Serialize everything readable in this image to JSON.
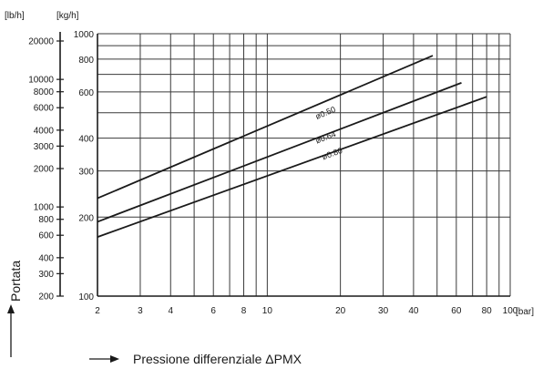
{
  "chart_data": {
    "type": "line",
    "title": "",
    "xlabel": "Pressione differenziale ΔPMX",
    "ylabel": "Portata",
    "x_unit": "[bar]",
    "y_unit_primary": "[kg/h]",
    "y_unit_secondary": "[lb/h]",
    "x_scale": "log",
    "y_scale": "log",
    "xlim": [
      2,
      100
    ],
    "ylim": [
      100,
      1000
    ],
    "grid": true,
    "legend": "none",
    "x_ticks": [
      2,
      3,
      4,
      6,
      8,
      10,
      20,
      30,
      40,
      60,
      80,
      100
    ],
    "x_tick_labels": [
      "2",
      "3",
      "4",
      "6",
      "8",
      "10",
      "20",
      "30",
      "40",
      "60",
      "80",
      "100"
    ],
    "x_minor_grid": [
      5,
      7,
      9,
      50,
      70,
      90
    ],
    "y_ticks": [
      100,
      200,
      300,
      400,
      600,
      800,
      1000
    ],
    "y_tick_labels": [
      "100",
      "200",
      "300",
      "400",
      "600",
      "800",
      "1000"
    ],
    "y_minor_grid": [
      500,
      700,
      900
    ],
    "secondary_y_ticks": [
      {
        "label": "20000",
        "at_kg_h": 907
      },
      {
        "label": "10000",
        "at_kg_h": 453.6
      },
      {
        "label": "8000",
        "at_kg_h": 362.9
      },
      {
        "label": "6000",
        "at_kg_h": 272.2
      },
      {
        "label": "4000",
        "at_kg_h": 181.4
      },
      {
        "label": "3000",
        "at_kg_h": 136.1
      },
      {
        "label": "2000",
        "at_kg_h": 90.7
      },
      {
        "label": "1000",
        "at_kg_h": 45.4
      },
      {
        "label": "800",
        "at_kg_h": 36.3
      },
      {
        "label": "600",
        "at_kg_h": 27.2
      },
      {
        "label": "400",
        "at_kg_h": 18.1
      },
      {
        "label": "300",
        "at_kg_h": 13.6
      },
      {
        "label": "200",
        "at_kg_h": 9.07
      }
    ],
    "secondary_y_log_range": [
      200,
      20000
    ],
    "series": [
      {
        "name": "ø0.50",
        "x": [
          2,
          48
        ],
        "y": [
          236,
          825
        ]
      },
      {
        "name": "ø0.64",
        "x": [
          2,
          63
        ],
        "y": [
          192,
          650
        ]
      },
      {
        "name": "ø0.80",
        "x": [
          2,
          80
        ],
        "y": [
          168,
          575
        ]
      }
    ],
    "series_label_positions": [
      {
        "x": 16,
        "y": 460
      },
      {
        "x": 16,
        "y": 372
      },
      {
        "x": 17,
        "y": 323
      }
    ],
    "colors": {
      "line": "#1a1a1a",
      "grid": "#3a3a3a",
      "text": "#1a1a1a"
    }
  }
}
